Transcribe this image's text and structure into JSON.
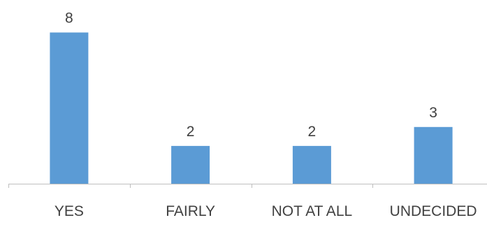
{
  "chart_data": {
    "type": "bar",
    "categories": [
      "YES",
      "FAIRLY",
      "NOT AT ALL",
      "UNDECIDED"
    ],
    "values": [
      8,
      2,
      2,
      3
    ],
    "data_labels": [
      "8",
      "2",
      "2",
      "3"
    ],
    "ylim": [
      0,
      8.5
    ],
    "grid": false,
    "legend": "none",
    "bar_color": "#5B9BD5",
    "axis_color": "#BFBFBF",
    "text_color": "#404040"
  }
}
